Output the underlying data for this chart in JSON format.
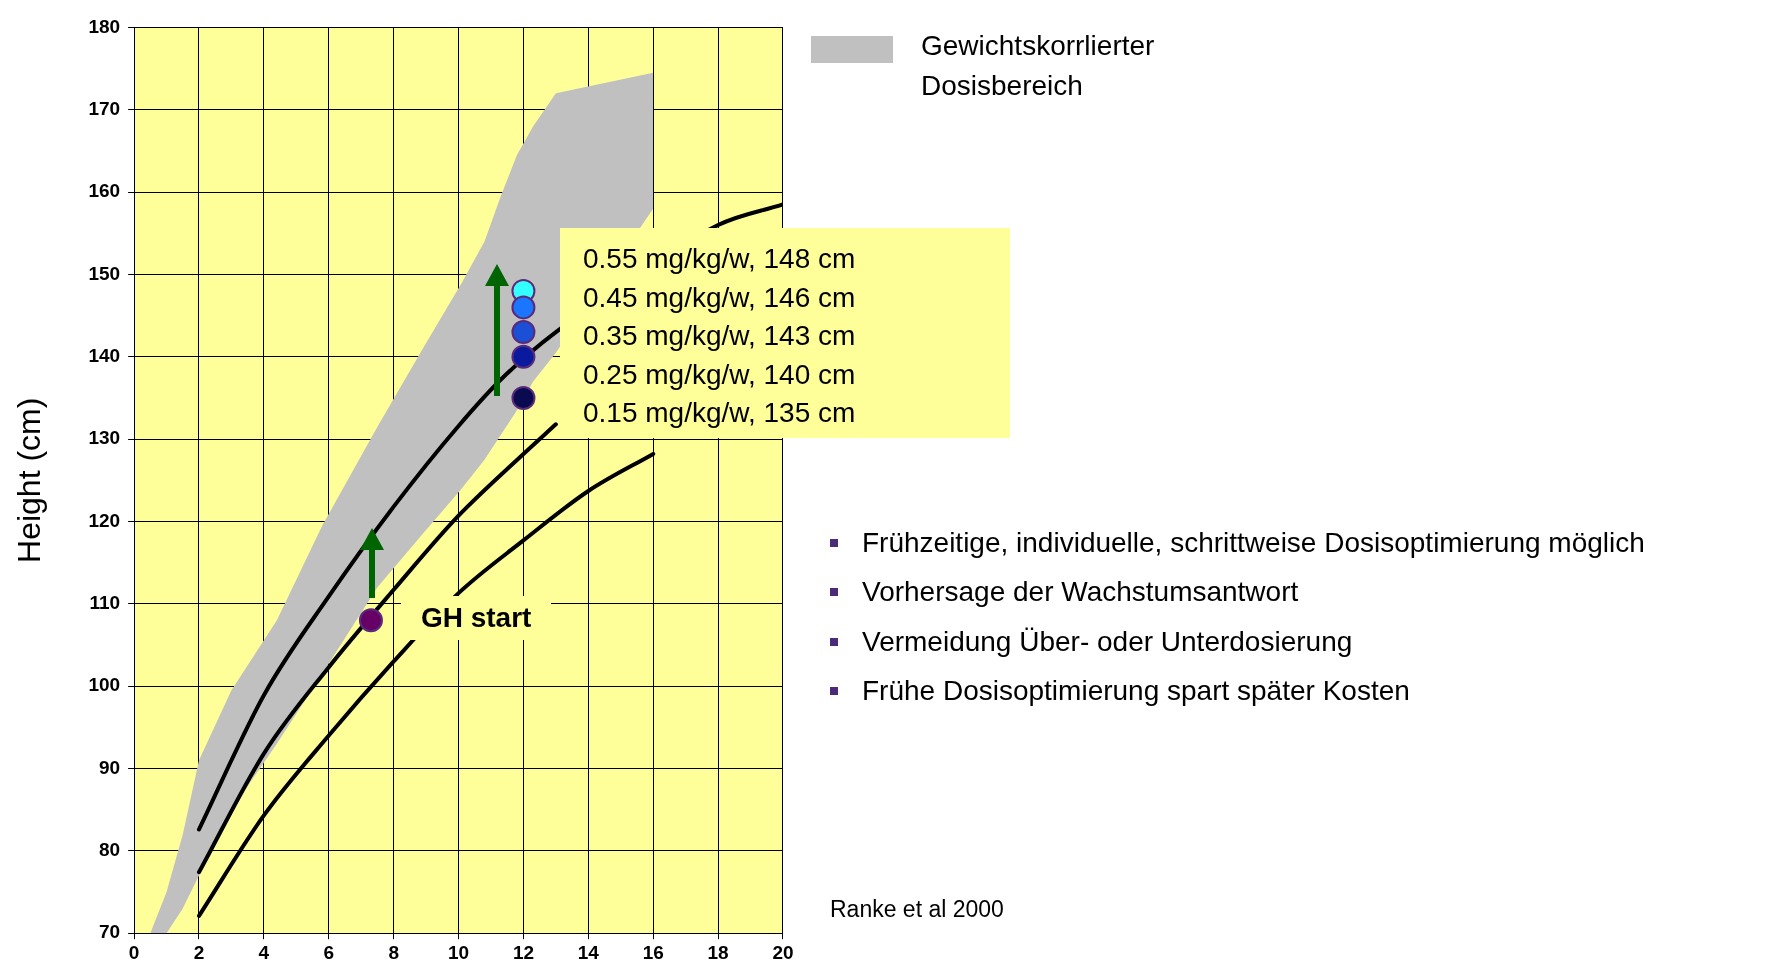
{
  "chart_data": {
    "type": "line",
    "ylabel": "Height (cm)",
    "xlim": [
      0,
      20
    ],
    "xticks": [
      0,
      2,
      4,
      6,
      8,
      10,
      12,
      14,
      16,
      18,
      20
    ],
    "ylim": [
      70,
      180
    ],
    "yticks": [
      70,
      80,
      90,
      100,
      110,
      120,
      130,
      140,
      150,
      160,
      170,
      180
    ],
    "grid": true,
    "legend": "top right",
    "marker": "none",
    "series": [
      {
        "type": "area",
        "name": "Gewichtskorrlierter Dosisbereich",
        "color": "#c0c0c0",
        "x": [
          0.5,
          1,
          1.5,
          2,
          3,
          4.4,
          5.8,
          7.5,
          8.9,
          10.1,
          10.8,
          11.3,
          11.8,
          12.3,
          13,
          16
        ],
        "values": [
          null,
          null,
          null,
          null,
          null,
          null,
          null,
          null,
          null,
          null,
          null,
          null,
          null,
          null,
          null,
          null
        ],
        "lower": [
          70,
          70,
          73,
          77,
          85,
          93,
          101.5,
          112,
          118.5,
          124,
          127.5,
          130.5,
          133.5,
          137,
          140.5,
          158
        ],
        "upper": [
          70,
          75,
          82,
          91,
          99.5,
          108,
          119.5,
          131.5,
          141,
          149,
          154,
          159.5,
          164.5,
          168,
          172,
          174.5
        ]
      },
      {
        "color": "#000000",
        "x": [
          2,
          4,
          6,
          8,
          10,
          11.4,
          13,
          18,
          20
        ],
        "values": [
          82.6,
          98.9,
          110.9,
          121.8,
          131.6,
          137.6,
          143,
          156,
          158.5
        ]
      },
      {
        "color": "#000000",
        "x": [
          2,
          4,
          6,
          8,
          10,
          12,
          13
        ],
        "values": [
          77.4,
          91.8,
          102.3,
          111.7,
          120.7,
          128.2,
          131.8
        ]
      },
      {
        "color": "#000000",
        "x": [
          2,
          4,
          6,
          8,
          10,
          12,
          14,
          16
        ],
        "values": [
          72.1,
          84.3,
          94,
          103,
          111.3,
          117.7,
          123.7,
          128.2
        ]
      },
      {
        "type": "scatter",
        "marker": "circle",
        "x": [
          7.3,
          12,
          12,
          12,
          12,
          12
        ],
        "values": [
          108,
          148,
          146,
          143,
          140,
          135
        ],
        "colors": [
          "#660066",
          "#33ffff",
          "#1a75ff",
          "#1a4fd6",
          "#0a1a9e",
          "#0a0a50"
        ]
      }
    ],
    "annotations": [
      {
        "text": "GH start",
        "x": 7.3,
        "y": 108
      },
      "0.55 mg/kg/w, 148 cm",
      "0.45 mg/kg/w, 146 cm",
      "0.35 mg/kg/w, 143 cm",
      "0.25 mg/kg/w, 140 cm",
      "0.15 mg/kg/w, 135 cm",
      "Frühzeitige, individuelle, schrittweise Dosisoptimierung möglich",
      "Vorhersage der Wachstumsantwort",
      "Vermeidung Über- oder Unterdosierung",
      "Frühe Dosisoptimierung spart später Kosten",
      "Ranke et al 2000"
    ]
  }
}
